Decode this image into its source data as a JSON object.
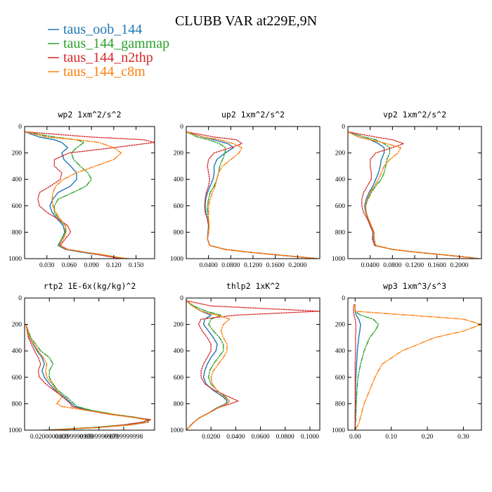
{
  "chart_data": {
    "type": "line",
    "title": "CLUBB VAR at229E,9N",
    "legend_position": "top-left",
    "series": [
      {
        "name": "taus_oob_144",
        "color": "#1f77b4",
        "dash": "solid"
      },
      {
        "name": "taus_144_gammap",
        "color": "#2ca02c",
        "dash": "dashdot"
      },
      {
        "name": "taus_144_n2thp",
        "color": "#d62728",
        "dash": "dotted"
      },
      {
        "name": "taus_144_c8m",
        "color": "#ff7f0e",
        "dash": "dashdot"
      }
    ],
    "panels": [
      {
        "title": "wp2  1xm^2/s^2",
        "xlim": [
          0.0,
          0.175
        ],
        "ylim": [
          1000,
          0
        ],
        "xticks": [
          0.03,
          0.06,
          0.09,
          0.12,
          0.15
        ],
        "xticklabels": [
          "0.030",
          "0.060",
          "0.090",
          "0.120",
          "0.150"
        ],
        "yticks": [
          0,
          200,
          400,
          600,
          800,
          1000
        ],
        "y": [
          40,
          80,
          100,
          120,
          160,
          200,
          250,
          300,
          350,
          400,
          450,
          500,
          550,
          600,
          650,
          700,
          750,
          800,
          850,
          900,
          930,
          950,
          970,
          990,
          1000
        ],
        "values": [
          [
            0.0,
            0.02,
            0.04,
            0.05,
            0.058,
            0.05,
            0.053,
            0.062,
            0.07,
            0.07,
            0.062,
            0.045,
            0.038,
            0.034,
            0.037,
            0.044,
            0.052,
            0.054,
            0.05,
            0.045,
            0.055,
            0.075,
            0.1,
            0.12,
            0.13
          ],
          [
            0.0,
            0.04,
            0.07,
            0.08,
            0.07,
            0.063,
            0.066,
            0.075,
            0.085,
            0.09,
            0.083,
            0.065,
            0.045,
            0.04,
            0.04,
            0.046,
            0.055,
            0.055,
            0.05,
            0.046,
            0.058,
            0.08,
            0.105,
            0.125,
            0.135
          ],
          [
            0.0,
            0.09,
            0.16,
            0.175,
            0.12,
            0.06,
            0.04,
            0.04,
            0.05,
            0.048,
            0.035,
            0.02,
            0.018,
            0.02,
            0.03,
            0.045,
            0.058,
            0.062,
            0.055,
            0.048,
            0.058,
            0.08,
            0.1,
            0.12,
            0.13
          ],
          [
            0.0,
            0.03,
            0.07,
            0.1,
            0.12,
            0.13,
            0.12,
            0.095,
            0.07,
            0.052,
            0.042,
            0.038,
            0.037,
            0.038,
            0.042,
            0.048,
            0.055,
            0.056,
            0.052,
            0.047,
            0.057,
            0.08,
            0.105,
            0.125,
            0.14
          ]
        ]
      },
      {
        "title": "up2  1xm^2/s^2",
        "xlim": [
          0.0,
          0.24
        ],
        "ylim": [
          1000,
          0
        ],
        "xticks": [
          0.04,
          0.08,
          0.12,
          0.16,
          0.2
        ],
        "xticklabels": [
          "0.0400",
          "0.0800",
          "0.1200",
          "0.1600",
          "0.2000"
        ],
        "yticks": [
          0,
          200,
          400,
          600,
          800,
          1000
        ],
        "y": [
          40,
          80,
          100,
          130,
          160,
          200,
          250,
          300,
          350,
          400,
          450,
          500,
          550,
          600,
          650,
          700,
          750,
          800,
          850,
          900,
          930,
          950,
          970,
          990,
          1000
        ],
        "values": [
          [
            0.0,
            0.03,
            0.05,
            0.075,
            0.085,
            0.07,
            0.055,
            0.05,
            0.05,
            0.048,
            0.043,
            0.038,
            0.035,
            0.034,
            0.035,
            0.038,
            0.04,
            0.039,
            0.038,
            0.042,
            0.07,
            0.11,
            0.16,
            0.21,
            0.235
          ],
          [
            0.0,
            0.02,
            0.04,
            0.06,
            0.07,
            0.07,
            0.065,
            0.06,
            0.058,
            0.055,
            0.05,
            0.043,
            0.04,
            0.038,
            0.038,
            0.04,
            0.041,
            0.04,
            0.038,
            0.042,
            0.07,
            0.11,
            0.16,
            0.21,
            0.235
          ],
          [
            0.0,
            0.05,
            0.09,
            0.1,
            0.08,
            0.05,
            0.04,
            0.038,
            0.04,
            0.042,
            0.04,
            0.036,
            0.034,
            0.033,
            0.034,
            0.038,
            0.04,
            0.04,
            0.038,
            0.042,
            0.07,
            0.11,
            0.16,
            0.21,
            0.235
          ],
          [
            0.0,
            0.03,
            0.06,
            0.085,
            0.1,
            0.095,
            0.08,
            0.065,
            0.058,
            0.055,
            0.052,
            0.047,
            0.043,
            0.04,
            0.04,
            0.04,
            0.041,
            0.04,
            0.038,
            0.042,
            0.07,
            0.11,
            0.16,
            0.21,
            0.235
          ]
        ]
      },
      {
        "title": "vp2  1xm^2/s^2",
        "xlim": [
          0.0,
          0.24
        ],
        "ylim": [
          1000,
          0
        ],
        "xticks": [
          0.04,
          0.08,
          0.12,
          0.16,
          0.2
        ],
        "xticklabels": [
          "0.0400",
          "0.0800",
          "0.1200",
          "0.1600",
          "0.2000"
        ],
        "yticks": [
          0,
          200,
          400,
          600,
          800,
          1000
        ],
        "y": [
          40,
          80,
          100,
          130,
          160,
          200,
          250,
          300,
          350,
          400,
          450,
          500,
          550,
          600,
          650,
          700,
          750,
          800,
          850,
          900,
          930,
          950,
          970,
          990,
          1000
        ],
        "values": [
          [
            0.0,
            0.02,
            0.04,
            0.055,
            0.065,
            0.065,
            0.06,
            0.058,
            0.055,
            0.05,
            0.045,
            0.038,
            0.033,
            0.03,
            0.032,
            0.036,
            0.04,
            0.045,
            0.045,
            0.048,
            0.08,
            0.12,
            0.17,
            0.215,
            0.235
          ],
          [
            0.0,
            0.03,
            0.05,
            0.065,
            0.075,
            0.075,
            0.07,
            0.068,
            0.065,
            0.06,
            0.05,
            0.042,
            0.036,
            0.032,
            0.033,
            0.037,
            0.042,
            0.047,
            0.047,
            0.05,
            0.08,
            0.12,
            0.17,
            0.215,
            0.235
          ],
          [
            0.0,
            0.05,
            0.08,
            0.1,
            0.08,
            0.05,
            0.04,
            0.04,
            0.042,
            0.042,
            0.035,
            0.028,
            0.025,
            0.025,
            0.028,
            0.035,
            0.04,
            0.045,
            0.044,
            0.048,
            0.08,
            0.12,
            0.17,
            0.215,
            0.235
          ],
          [
            0.0,
            0.02,
            0.04,
            0.07,
            0.095,
            0.09,
            0.075,
            0.065,
            0.06,
            0.055,
            0.048,
            0.04,
            0.035,
            0.032,
            0.033,
            0.037,
            0.042,
            0.047,
            0.047,
            0.05,
            0.08,
            0.12,
            0.17,
            0.215,
            0.235
          ]
        ]
      },
      {
        "title": "rtp2  1E-6x(kg/kg)^2",
        "xlim": [
          0.0,
          0.105
        ],
        "ylim": [
          1000,
          0
        ],
        "xticks": [
          0.02,
          0.04,
          0.06,
          0.08
        ],
        "xticklabels": [
          "0.0200000000",
          "0.0399999999",
          "0.0599999999",
          "0.0799999998"
        ],
        "yticks": [
          0,
          200,
          400,
          600,
          800,
          1000
        ],
        "y": [
          200,
          300,
          400,
          450,
          500,
          550,
          600,
          650,
          700,
          750,
          800,
          820,
          850,
          880,
          900,
          920,
          940,
          960,
          980,
          1000
        ],
        "values": [
          [
            0.001,
            0.004,
            0.01,
            0.014,
            0.016,
            0.014,
            0.016,
            0.02,
            0.025,
            0.032,
            0.038,
            0.04,
            0.052,
            0.07,
            0.085,
            0.1,
            0.1,
            0.085,
            0.06,
            0.02
          ],
          [
            0.001,
            0.005,
            0.013,
            0.02,
            0.023,
            0.02,
            0.02,
            0.023,
            0.027,
            0.034,
            0.04,
            0.042,
            0.054,
            0.072,
            0.088,
            0.1,
            0.095,
            0.08,
            0.055,
            0.015
          ],
          [
            0.001,
            0.003,
            0.008,
            0.011,
            0.013,
            0.011,
            0.012,
            0.017,
            0.024,
            0.031,
            0.037,
            0.038,
            0.05,
            0.068,
            0.085,
            0.102,
            0.095,
            0.08,
            0.06,
            0.02
          ],
          [
            0.001,
            0.004,
            0.011,
            0.015,
            0.018,
            0.017,
            0.018,
            0.022,
            0.026,
            0.03,
            0.026,
            0.03,
            0.05,
            0.07,
            0.085,
            0.098,
            0.1,
            0.085,
            0.06,
            0.02
          ]
        ]
      },
      {
        "title": "thlp2  1xK^2",
        "xlim": [
          0.0,
          0.108
        ],
        "ylim": [
          1000,
          0
        ],
        "xticks": [
          0.02,
          0.04,
          0.06,
          0.08,
          0.1
        ],
        "xticklabels": [
          "0.0200",
          "0.0400",
          "0.0600",
          "0.0800",
          "0.1000"
        ],
        "yticks": [
          0,
          200,
          400,
          600,
          800,
          1000
        ],
        "y": [
          20,
          60,
          100,
          130,
          160,
          200,
          250,
          300,
          350,
          400,
          450,
          500,
          550,
          600,
          650,
          700,
          750,
          780,
          800,
          830,
          870,
          910,
          950,
          980,
          1000
        ],
        "values": [
          [
            0.0,
            0.005,
            0.012,
            0.02,
            0.015,
            0.014,
            0.018,
            0.022,
            0.025,
            0.024,
            0.02,
            0.017,
            0.015,
            0.014,
            0.016,
            0.022,
            0.03,
            0.033,
            0.032,
            0.025,
            0.018,
            0.01,
            0.005,
            0.002,
            0.0
          ],
          [
            0.0,
            0.006,
            0.016,
            0.028,
            0.02,
            0.018,
            0.022,
            0.027,
            0.03,
            0.03,
            0.026,
            0.022,
            0.019,
            0.018,
            0.02,
            0.025,
            0.032,
            0.035,
            0.033,
            0.026,
            0.018,
            0.01,
            0.005,
            0.002,
            0.0
          ],
          [
            0.0,
            0.02,
            0.108,
            0.04,
            0.012,
            0.01,
            0.013,
            0.017,
            0.02,
            0.02,
            0.017,
            0.014,
            0.012,
            0.012,
            0.015,
            0.023,
            0.035,
            0.042,
            0.036,
            0.026,
            0.018,
            0.01,
            0.005,
            0.002,
            0.0
          ],
          [
            0.0,
            0.005,
            0.012,
            0.025,
            0.035,
            0.03,
            0.028,
            0.03,
            0.033,
            0.033,
            0.03,
            0.026,
            0.022,
            0.02,
            0.021,
            0.025,
            0.031,
            0.035,
            0.033,
            0.026,
            0.018,
            0.01,
            0.005,
            0.002,
            0.0
          ]
        ]
      },
      {
        "title": "wp3  1xm^3/s^3",
        "xlim": [
          -0.02,
          0.35
        ],
        "ylim": [
          1000,
          0
        ],
        "xticks": [
          0.0,
          0.1,
          0.2,
          0.3
        ],
        "xticklabels": [
          "0.00",
          "0.10",
          "0.20",
          "0.30"
        ],
        "yticks": [
          0,
          200,
          400,
          600,
          800,
          1000
        ],
        "y": [
          50,
          100,
          130,
          160,
          200,
          250,
          300,
          400,
          500,
          600,
          700,
          800,
          900,
          950,
          1000
        ],
        "values": [
          [
            0.0,
            0.0,
            0.003,
            0.01,
            0.015,
            0.013,
            0.01,
            0.006,
            0.004,
            0.002,
            0.001,
            0.001,
            0.0,
            0.0,
            0.0
          ],
          [
            0.0,
            0.0,
            0.015,
            0.05,
            0.065,
            0.055,
            0.04,
            0.025,
            0.015,
            0.008,
            0.005,
            0.003,
            0.002,
            0.001,
            0.0
          ],
          [
            -0.003,
            -0.005,
            -0.003,
            0.0,
            0.002,
            0.002,
            0.001,
            0.001,
            0.0,
            0.0,
            0.0,
            0.0,
            0.0,
            0.0,
            0.0
          ],
          [
            0.0,
            0.0,
            0.15,
            0.3,
            0.35,
            0.3,
            0.22,
            0.13,
            0.075,
            0.055,
            0.04,
            0.025,
            0.015,
            0.01,
            0.0
          ]
        ]
      }
    ]
  }
}
